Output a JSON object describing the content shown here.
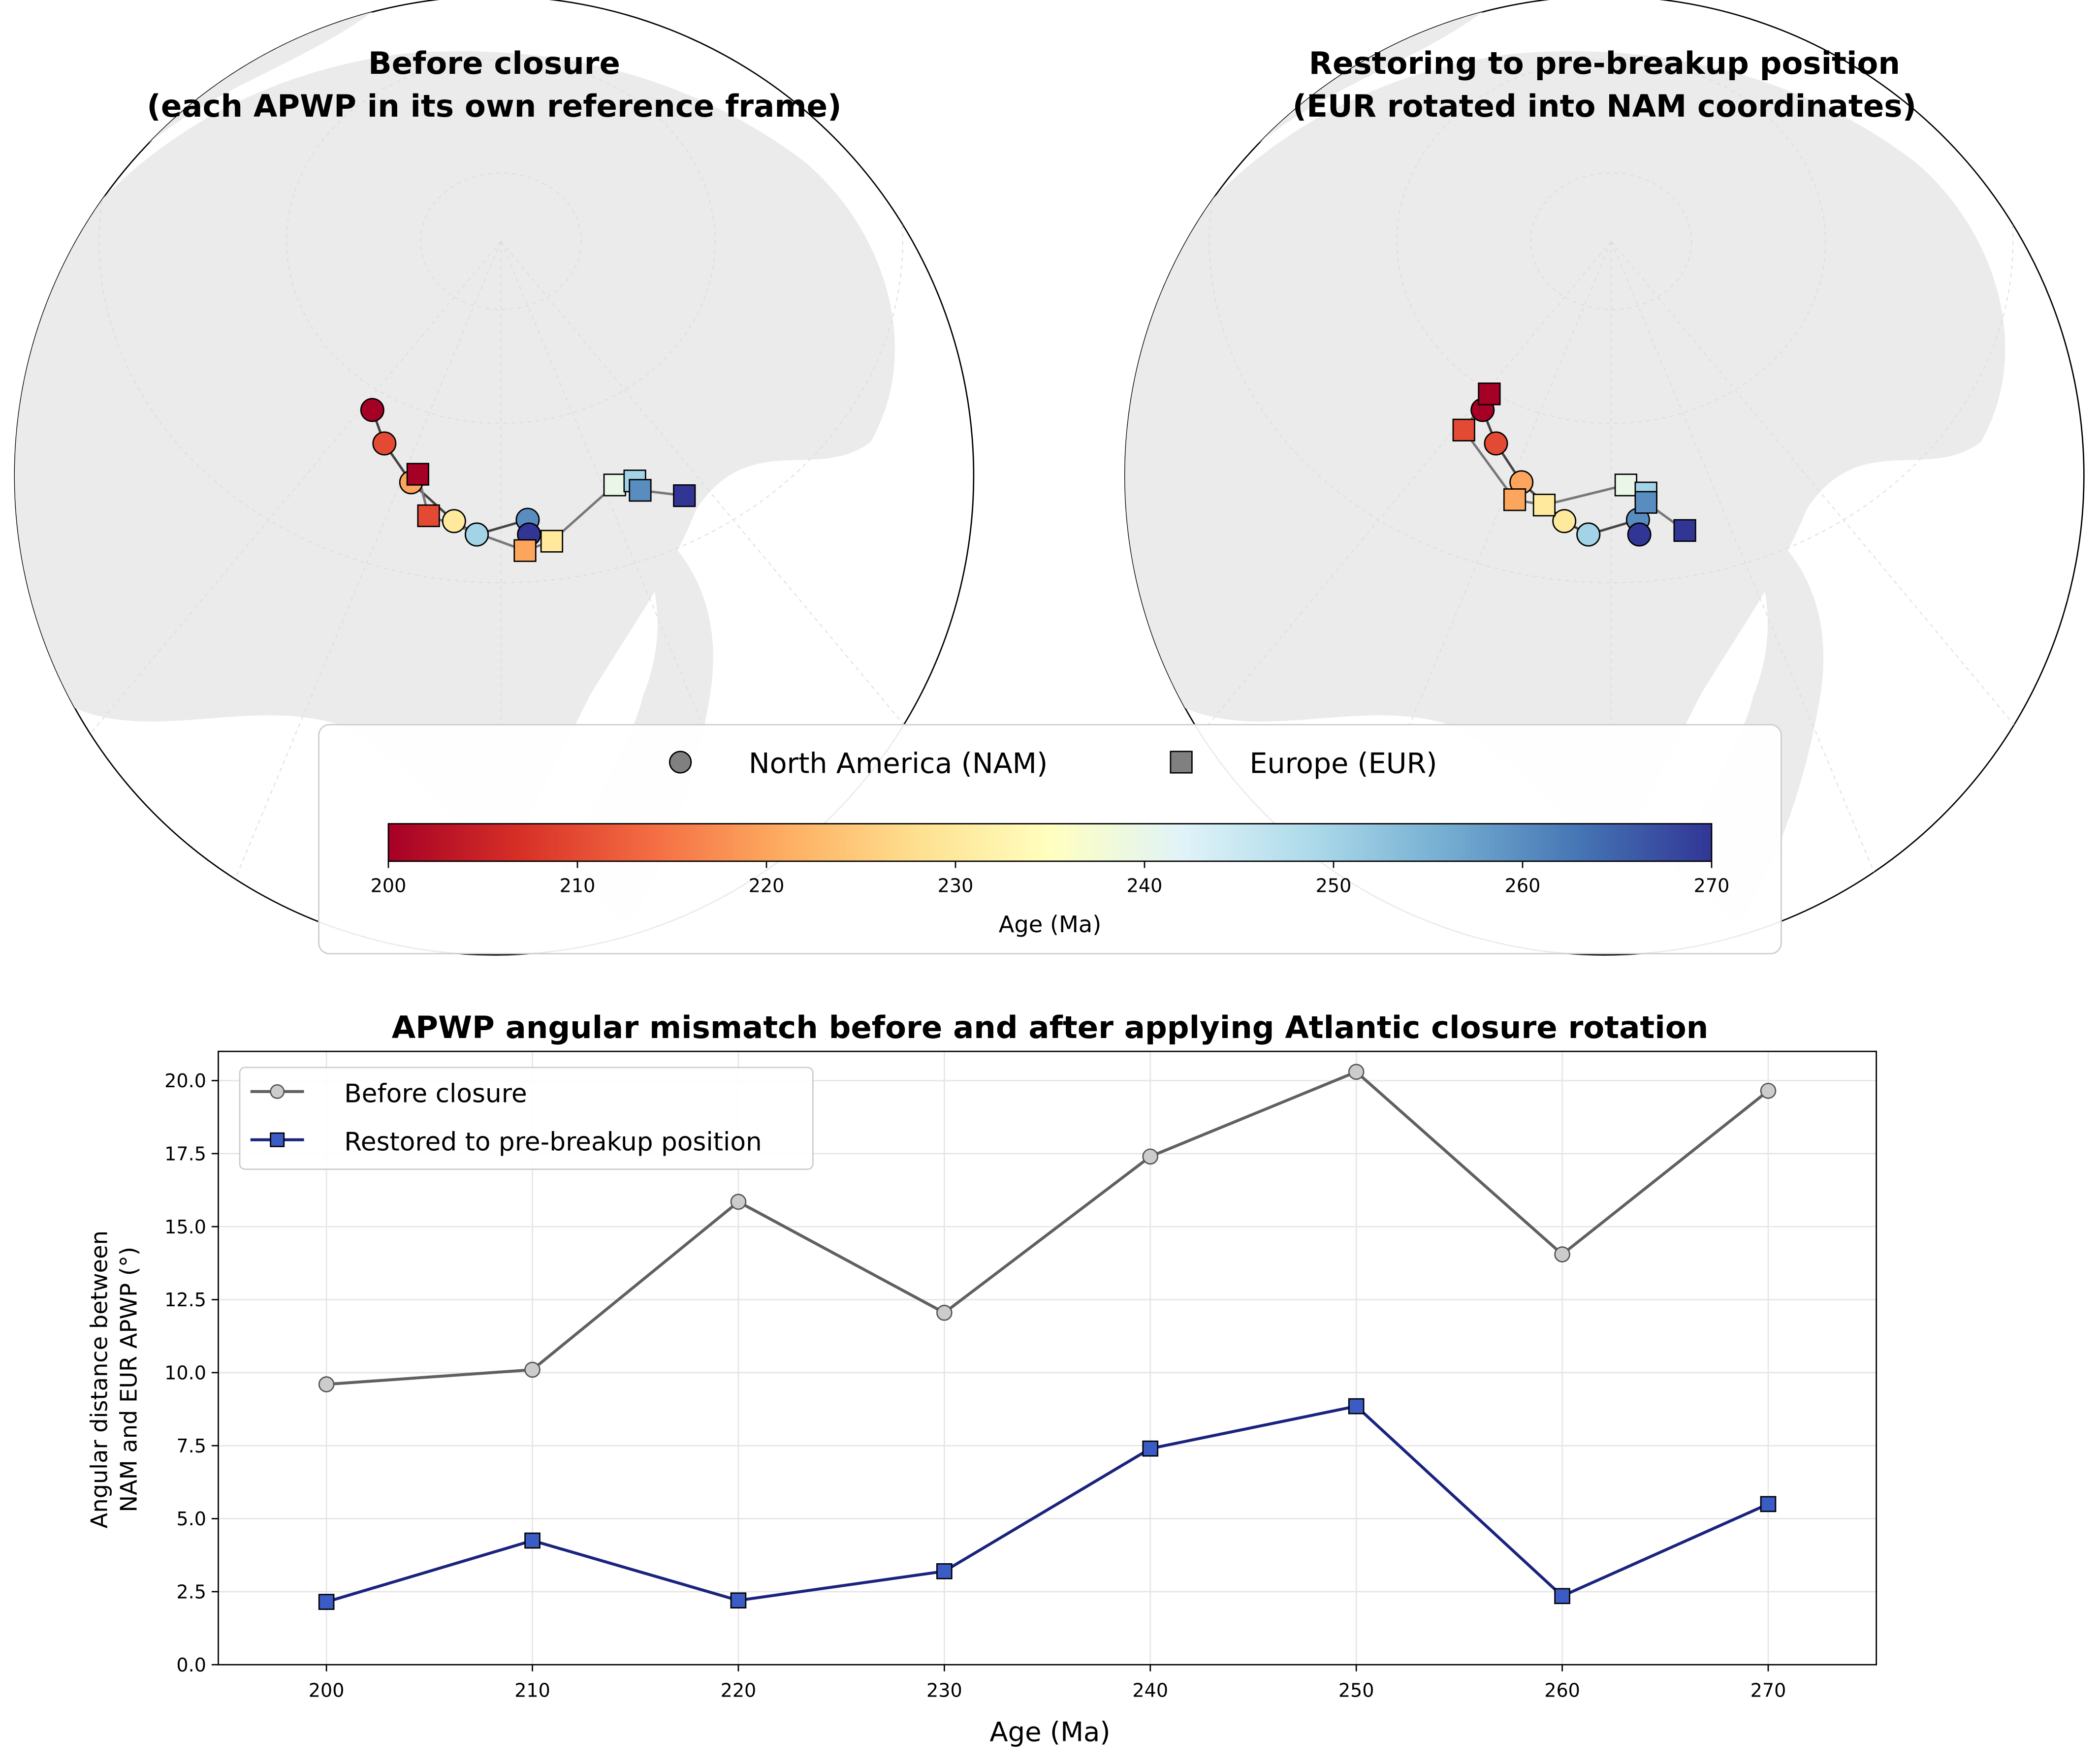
{
  "maps": [
    {
      "title_line1": "Before closure",
      "title_line2": "(each APWP in its own reference frame)"
    },
    {
      "title_line1": "Restoring to pre-breakup position",
      "title_line2": "(EUR rotated into NAM coordinates)"
    }
  ],
  "legend": {
    "nam_label": "North America (NAM)",
    "eur_label": "Europe (EUR)",
    "colorbar_label": "Age (Ma)",
    "colorbar_ticks": [
      "200",
      "210",
      "220",
      "230",
      "240",
      "250",
      "260",
      "270"
    ],
    "colormap": [
      "#a50026",
      "#d73027",
      "#f46d43",
      "#fdae61",
      "#fee090",
      "#ffffbf",
      "#e0f3f8",
      "#abd9e9",
      "#74add1",
      "#4575b4",
      "#313695"
    ],
    "age_range": [
      200,
      270
    ]
  },
  "chart_data": {
    "type": "line",
    "title": "APWP angular mismatch before and after applying Atlantic closure rotation",
    "xlabel": "Age (Ma)",
    "ylabel_line1": "Angular distance between",
    "ylabel_line2": "NAM and EUR APWP (°)",
    "x": [
      200,
      210,
      220,
      230,
      240,
      250,
      260,
      270
    ],
    "xlim": [
      194.75,
      275.25
    ],
    "ylim": [
      0,
      21
    ],
    "xticks": [
      "200",
      "210",
      "220",
      "230",
      "240",
      "250",
      "260",
      "270"
    ],
    "yticks": [
      "0.0",
      "2.5",
      "5.0",
      "7.5",
      "10.0",
      "12.5",
      "15.0",
      "17.5",
      "20.0"
    ],
    "grid": true,
    "legend_position": "top-left",
    "series": [
      {
        "name": "Before closure",
        "values": [
          9.6,
          10.1,
          15.85,
          12.05,
          17.4,
          20.3,
          14.05,
          19.65
        ],
        "color": "#606060",
        "marker": "circle",
        "marker_fill": "#cccccc"
      },
      {
        "name": "Restored to pre-breakup position",
        "values": [
          2.15,
          4.25,
          2.2,
          3.2,
          7.4,
          8.85,
          2.35,
          5.5
        ],
        "color": "#1a237e",
        "marker": "square",
        "marker_fill": "#3b5bc5"
      }
    ]
  }
}
